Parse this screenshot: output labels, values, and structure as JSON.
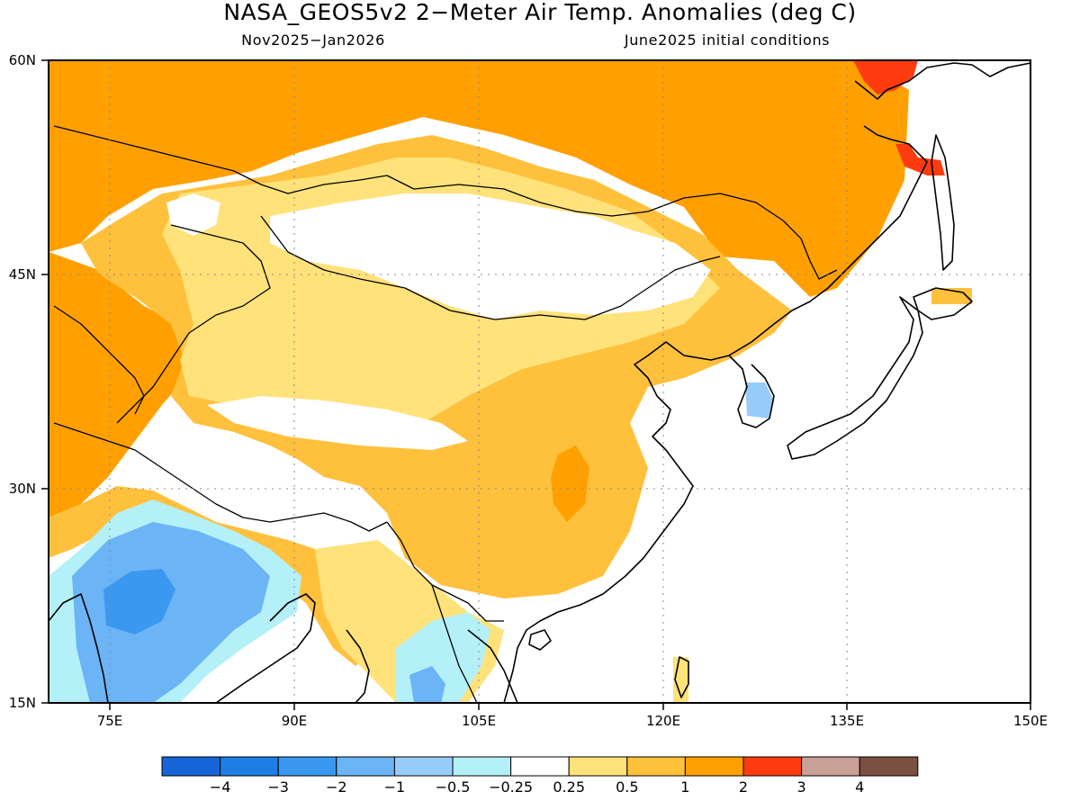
{
  "title": "NASA_GEOS5v2 2−Meter Air Temp. Anomalies (deg C)",
  "period": "Nov2025−Jan2026",
  "initial_conditions": "June2025 initial conditions",
  "map": {
    "lon_range": [
      70,
      150
    ],
    "lat_range": [
      15,
      60
    ],
    "lon_ticks": [
      "75E",
      "90E",
      "105E",
      "120E",
      "135E",
      "150E"
    ],
    "lat_ticks": [
      "60N",
      "45N",
      "30N",
      "15N"
    ],
    "grid": "dotted"
  },
  "colorbar": {
    "colors": [
      "#1565d8",
      "#1e7ee6",
      "#3a98f0",
      "#6bb4f5",
      "#98ccf8",
      "#b4f0f8",
      "#ffffff",
      "#ffe27a",
      "#ffc03c",
      "#ffa000",
      "#ff3c10",
      "#c8a096",
      "#7a5040"
    ],
    "labels": [
      "−4",
      "−3",
      "−2",
      "−1",
      "−0.5",
      "−0.25",
      "0.25",
      "0.5",
      "1",
      "2",
      "3",
      "4"
    ]
  },
  "legend_colors": {
    "cold_strong": "#3a98f0",
    "cold": "#6bb4f5",
    "cool": "#b4f0f8",
    "neutral": "#ffffff",
    "warm_light": "#ffe27a",
    "warm": "#ffc03c",
    "warm_strong": "#ffa000",
    "hot": "#ff3c10"
  }
}
